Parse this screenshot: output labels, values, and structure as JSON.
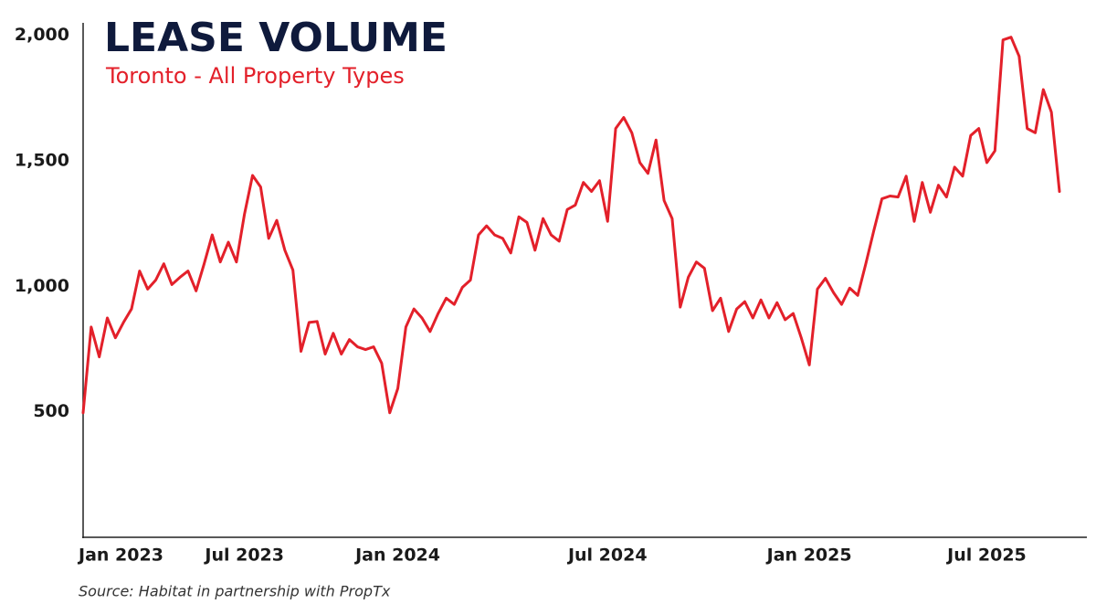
{
  "chart_data": {
    "type": "line",
    "title": "LEASE VOLUME",
    "subtitle": "Toronto - All Property Types",
    "source": "Source: Habitat in partnership with PropTx",
    "categories": [
      null,
      "Jan 2023",
      null,
      null,
      null,
      null,
      null,
      null,
      null,
      null,
      null,
      null,
      null,
      null,
      null,
      null,
      null,
      null,
      null,
      null,
      "Jul 2023",
      null,
      null,
      null,
      null,
      null,
      null,
      null,
      null,
      null,
      null,
      null,
      null,
      null,
      null,
      null,
      null,
      null,
      null,
      "Jan 2024",
      null,
      null,
      null,
      null,
      null,
      null,
      null,
      null,
      null,
      null,
      null,
      null,
      null,
      null,
      null,
      null,
      null,
      null,
      null,
      null,
      null,
      null,
      null,
      null,
      null,
      "Jul 2024",
      null,
      null,
      null,
      null,
      null,
      null,
      null,
      null,
      null,
      null,
      null,
      null,
      null,
      null,
      null,
      null,
      null,
      null,
      null,
      null,
      null,
      null,
      null,
      null,
      "Jan 2025",
      null,
      null,
      null,
      null,
      null,
      null,
      null,
      null,
      null,
      null,
      null,
      null,
      null,
      null,
      null,
      null,
      null,
      null,
      null,
      null,
      null,
      "Jul 2025",
      null,
      null,
      null,
      null,
      null,
      null,
      null,
      null,
      null
    ],
    "series": [
      {
        "name": "Lease Volume",
        "color": "#e3202a",
        "values": [
          496,
          838,
          719,
          874,
          795,
          856,
          910,
          1061,
          989,
          1025,
          1090,
          1007,
          1036,
          1061,
          982,
          1090,
          1205,
          1097,
          1176,
          1097,
          1288,
          1442,
          1396,
          1191,
          1263,
          1144,
          1065,
          741,
          856,
          860,
          730,
          813,
          730,
          788,
          759,
          748,
          759,
          694,
          496,
          593,
          838,
          910,
          874,
          820,
          892,
          953,
          928,
          996,
          1025,
          1205,
          1241,
          1205,
          1191,
          1133,
          1277,
          1255,
          1144,
          1270,
          1205,
          1180,
          1306,
          1324,
          1414,
          1378,
          1421,
          1259,
          1629,
          1673,
          1612,
          1493,
          1450,
          1583,
          1342,
          1270,
          917,
          1036,
          1097,
          1072,
          903,
          953,
          820,
          910,
          939,
          874,
          946,
          874,
          935,
          867,
          892,
          795,
          687,
          989,
          1032,
          975,
          928,
          993,
          964,
          1090,
          1223,
          1349,
          1360,
          1356,
          1439,
          1259,
          1414,
          1295,
          1403,
          1356,
          1475,
          1439,
          1601,
          1629,
          1493,
          1540,
          1982,
          1993,
          1917,
          1629,
          1612,
          1784,
          1694,
          1378
        ]
      }
    ],
    "ylim": [
      0,
      2050
    ],
    "yticks": [
      500,
      {
        "value": 1000,
        "label": "1,000"
      },
      {
        "value": 1500,
        "label": "1,500"
      },
      {
        "value": 2000,
        "label": "2,000"
      }
    ],
    "grid": false
  }
}
